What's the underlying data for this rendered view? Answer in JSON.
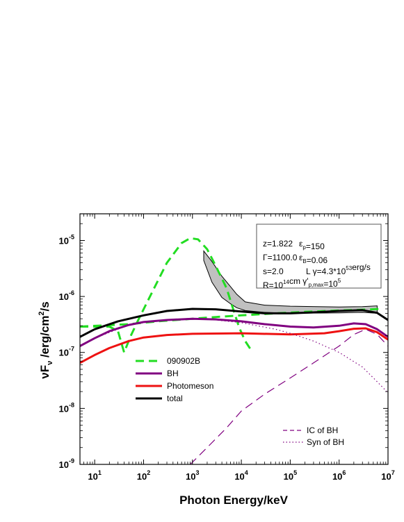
{
  "chart_data": {
    "type": "line",
    "xlabel": "Photon Energy/keV",
    "ylabel_parts": {
      "pre": "νF",
      "sub": "ν",
      "mid": " /erg/cm",
      "sup": "2",
      "post": "/s"
    },
    "x_scale": "log",
    "y_scale": "log",
    "xlim": [
      5,
      10000000
    ],
    "ylim": [
      1e-09,
      3e-05
    ],
    "x_ticks": [
      {
        "value": 10,
        "base": "10",
        "exp": "1"
      },
      {
        "value": 100,
        "base": "10",
        "exp": "2"
      },
      {
        "value": 1000,
        "base": "10",
        "exp": "3"
      },
      {
        "value": 10000,
        "base": "10",
        "exp": "4"
      },
      {
        "value": 100000,
        "base": "10",
        "exp": "5"
      },
      {
        "value": 1000000,
        "base": "10",
        "exp": "6"
      },
      {
        "value": 10000000,
        "base": "10",
        "exp": "7"
      }
    ],
    "y_ticks": [
      {
        "value": 1e-09,
        "base": "10",
        "exp": "-9"
      },
      {
        "value": 1e-08,
        "base": "10",
        "exp": "-8"
      },
      {
        "value": 1e-07,
        "base": "10",
        "exp": "-7"
      },
      {
        "value": 1e-06,
        "base": "10",
        "exp": "-6"
      },
      {
        "value": 1e-05,
        "base": "10",
        "exp": "-5"
      }
    ],
    "series": [
      {
        "name": "090902B",
        "color": "#22dd22",
        "style": "dashed",
        "width": 3,
        "points": [
          [
            5,
            2.9e-07
          ],
          [
            20,
            2.9e-07
          ],
          [
            30,
            2.4e-07
          ],
          [
            40,
            1e-07
          ],
          [
            55,
            2e-07
          ],
          [
            80,
            4e-07
          ],
          [
            150,
            1.2e-06
          ],
          [
            300,
            4e-06
          ],
          [
            600,
            9e-06
          ],
          [
            900,
            1.1e-05
          ],
          [
            1300,
            1.05e-05
          ],
          [
            2000,
            7e-06
          ],
          [
            3000,
            3.5e-06
          ],
          [
            5000,
            1.4e-06
          ],
          [
            7000,
            5.5e-07
          ],
          [
            9000,
            2.8e-07
          ],
          [
            12000,
            1.6e-07
          ],
          [
            17000,
            1e-07
          ]
        ]
      },
      {
        "name": "090902B",
        "color": "#22dd22",
        "style": "dashed",
        "width": 3,
        "points": [
          [
            5,
            2.9e-07
          ],
          [
            50,
            3.2e-07
          ],
          [
            200,
            3.6e-07
          ],
          [
            1000,
            4e-07
          ],
          [
            3000,
            4.3e-07
          ],
          [
            10000,
            4.6e-07
          ],
          [
            50000,
            5e-07
          ],
          [
            200000,
            5.3e-07
          ],
          [
            1000000,
            5.6e-07
          ],
          [
            3000000,
            5.8e-07
          ],
          [
            7000000,
            6e-07
          ]
        ]
      },
      {
        "name": "BH",
        "color": "#800080",
        "style": "solid",
        "width": 3,
        "points": [
          [
            5,
            1.3e-07
          ],
          [
            10,
            1.8e-07
          ],
          [
            20,
            2.4e-07
          ],
          [
            50,
            3.1e-07
          ],
          [
            100,
            3.5e-07
          ],
          [
            300,
            3.8e-07
          ],
          [
            1000,
            4e-07
          ],
          [
            3000,
            3.9e-07
          ],
          [
            10000,
            3.6e-07
          ],
          [
            30000,
            3.2e-07
          ],
          [
            100000,
            2.9e-07
          ],
          [
            300000,
            2.8e-07
          ],
          [
            1000000,
            3e-07
          ],
          [
            2000000,
            3.3e-07
          ],
          [
            3500000,
            3.2e-07
          ],
          [
            6000000,
            2.6e-07
          ],
          [
            10000000,
            1.9e-07
          ]
        ]
      },
      {
        "name": "Photomeson",
        "color": "#ee1111",
        "style": "solid",
        "width": 3,
        "points": [
          [
            5,
            6.5e-08
          ],
          [
            10,
            9e-08
          ],
          [
            20,
            1.2e-07
          ],
          [
            50,
            1.6e-07
          ],
          [
            100,
            1.85e-07
          ],
          [
            300,
            2.05e-07
          ],
          [
            1000,
            2.15e-07
          ],
          [
            10000,
            2.2e-07
          ],
          [
            100000,
            2.1e-07
          ],
          [
            500000,
            2.2e-07
          ],
          [
            1000000,
            2.4e-07
          ],
          [
            2000000,
            2.65e-07
          ],
          [
            3500000,
            2.7e-07
          ],
          [
            6000000,
            2.3e-07
          ],
          [
            10000000,
            1.7e-07
          ]
        ]
      },
      {
        "name": "total",
        "color": "#000000",
        "style": "solid",
        "width": 3,
        "points": [
          [
            5,
            1.9e-07
          ],
          [
            10,
            2.6e-07
          ],
          [
            30,
            3.6e-07
          ],
          [
            100,
            4.6e-07
          ],
          [
            300,
            5.5e-07
          ],
          [
            1000,
            6e-07
          ],
          [
            3000,
            5.9e-07
          ],
          [
            10000,
            5.4e-07
          ],
          [
            30000,
            5e-07
          ],
          [
            100000,
            5e-07
          ],
          [
            300000,
            5.2e-07
          ],
          [
            1000000,
            5.5e-07
          ],
          [
            3000000,
            5.7e-07
          ],
          [
            6000000,
            5.1e-07
          ],
          [
            10000000,
            3.8e-07
          ]
        ]
      },
      {
        "name": "IC of BH",
        "color": "#800080",
        "style": "dashed",
        "width": 1.2,
        "points": [
          [
            900,
            1e-09
          ],
          [
            2000,
            2e-09
          ],
          [
            5000,
            4.5e-09
          ],
          [
            10000,
            9e-09
          ],
          [
            30000,
            1.8e-08
          ],
          [
            100000,
            3.5e-08
          ],
          [
            300000,
            6.5e-08
          ],
          [
            1000000,
            1.3e-07
          ],
          [
            2000000,
            2.1e-07
          ],
          [
            3500000,
            2.6e-07
          ],
          [
            6000000,
            2.1e-07
          ],
          [
            10000000,
            1.3e-07
          ]
        ]
      },
      {
        "name": "Syn of BH",
        "color": "#800080",
        "style": "dotted",
        "width": 1.2,
        "points": [
          [
            5,
            1.3e-07
          ],
          [
            10,
            1.8e-07
          ],
          [
            50,
            3.1e-07
          ],
          [
            200,
            3.7e-07
          ],
          [
            1000,
            4e-07
          ],
          [
            3000,
            3.8e-07
          ],
          [
            10000,
            3.4e-07
          ],
          [
            50000,
            2.6e-07
          ],
          [
            100000,
            2.2e-07
          ],
          [
            300000,
            1.6e-07
          ],
          [
            1000000,
            1e-07
          ],
          [
            3000000,
            5.5e-08
          ],
          [
            6000000,
            3e-08
          ],
          [
            10000000,
            1.9e-08
          ]
        ]
      }
    ],
    "band": {
      "upper": [
        [
          1700,
          6.5e-06
        ],
        [
          2500,
          4.2e-06
        ],
        [
          4000,
          2.3e-06
        ],
        [
          6000,
          1.5e-06
        ],
        [
          8000,
          1.1e-06
        ],
        [
          12000,
          8e-07
        ],
        [
          30000,
          7e-07
        ],
        [
          100000,
          6.7e-07
        ],
        [
          1000000,
          6.5e-07
        ],
        [
          3000000,
          6.6e-07
        ],
        [
          6000000,
          6.8e-07
        ]
      ],
      "lower": [
        [
          6000000,
          5e-07
        ],
        [
          3000000,
          5.2e-07
        ],
        [
          1000000,
          5.1e-07
        ],
        [
          100000,
          5e-07
        ],
        [
          30000,
          5.2e-07
        ],
        [
          12000,
          5.6e-07
        ],
        [
          8000,
          6.3e-07
        ],
        [
          6000,
          7.4e-07
        ],
        [
          4000,
          9.6e-07
        ],
        [
          2500,
          1.8e-06
        ],
        [
          1700,
          4.4e-06
        ]
      ]
    },
    "legend": {
      "placement": "left-middle",
      "entries": [
        "090902B",
        "BH",
        "Photomeson",
        "total"
      ]
    },
    "legend2": {
      "placement": "bottom-right",
      "entries": [
        "IC of BH",
        "Syn of BH"
      ]
    },
    "params": [
      [
        {
          "t": "z=1.822"
        },
        {
          "t": "ε",
          "sub": "p"
        },
        {
          "t": "=150"
        }
      ],
      [
        {
          "t": "Γ=1100.0"
        },
        {
          "t": "ε",
          "sub": "B"
        },
        {
          "t": "=0.06"
        }
      ],
      [
        {
          "t": "s=2.0"
        },
        {
          "t": "L γ=4.3*10"
        },
        {
          "t": "53",
          "sup": true
        },
        {
          "t": "erg/s"
        }
      ],
      [
        {
          "t": "R=10"
        },
        {
          "t": "14",
          "sup": true
        },
        {
          "t": "cm  γ'"
        },
        {
          "t": "p,max",
          "sub": ""
        },
        {
          "t": "=10"
        },
        {
          "t": "5",
          "sup": true
        }
      ]
    ]
  }
}
